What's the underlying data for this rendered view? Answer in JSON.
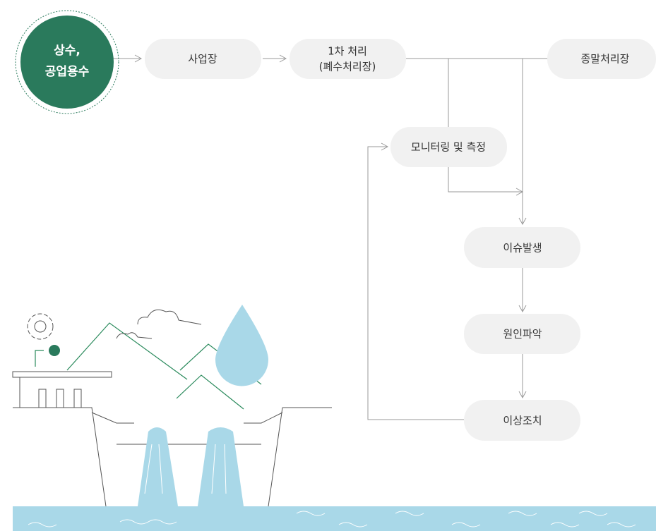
{
  "nodes": [
    {
      "label": [
        "상수,",
        "공업용수"
      ]
    },
    {
      "label": [
        "사업장"
      ]
    },
    {
      "label": [
        "1차 처리",
        "(폐수처리장)"
      ]
    },
    {
      "label": [
        "종말처리장"
      ]
    },
    {
      "label": [
        "모니터링 및 측정"
      ]
    },
    {
      "label": [
        "이슈발생"
      ]
    },
    {
      "label": [
        "원인파악"
      ]
    },
    {
      "label": [
        "이상조치"
      ]
    }
  ]
}
